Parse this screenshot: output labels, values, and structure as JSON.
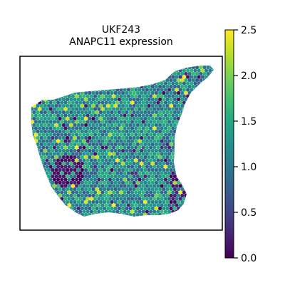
{
  "chart_data": {
    "type": "scatter",
    "title": "UKF243",
    "subtitle": "ANAPC11 expression",
    "xlabel": "",
    "ylabel": "",
    "colorbar": {
      "colormap": "viridis",
      "range": [
        0.0,
        2.5
      ],
      "ticks": [
        "0.0",
        "0.5",
        "1.0",
        "1.5",
        "2.0",
        "2.5"
      ],
      "tick_values": [
        0.0,
        0.5,
        1.0,
        1.5,
        2.0,
        2.5
      ]
    },
    "grid": false,
    "legend": "none",
    "marker": "hexagon",
    "spots": {
      "approx_count": 2200,
      "value_distribution": "mostly 0.8-1.6, low-expression (0.0) cluster at lower-left lobe and right edge, scattered highs near 2.0-2.5"
    }
  }
}
